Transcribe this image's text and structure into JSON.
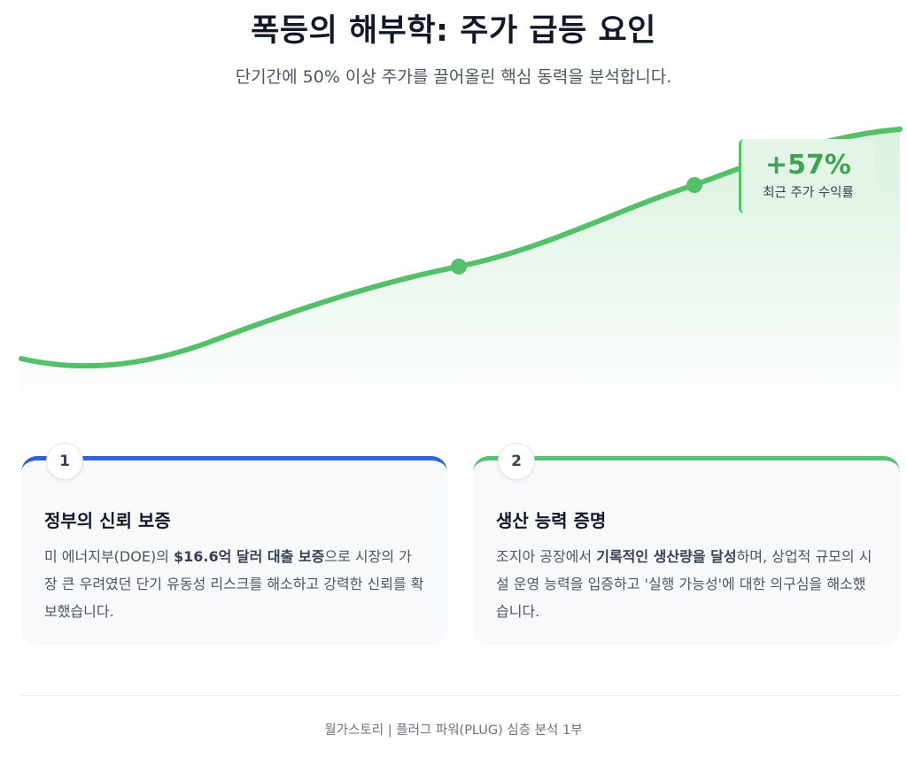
{
  "header": {
    "title": "폭등의 해부학: 주가 급등 요인",
    "subtitle": "단기간에 50% 이상 주가를 끌어올린 핵심 동력을 분석합니다."
  },
  "chart_data": {
    "type": "area",
    "title": "",
    "trend": "rising",
    "marked_points": 2,
    "annotation": {
      "value": "+57%",
      "label": "최근 주가 수익률"
    }
  },
  "colors": {
    "line": "#55c06a",
    "card_1_accent": "#2f63d6",
    "card_2_accent": "#5cc07a",
    "badge_bg": "#e3f5e6",
    "badge_text": "#3fa353"
  },
  "cards": [
    {
      "number": "1",
      "title": "정부의 신뢰 보증",
      "body": [
        {
          "text": "미 에너지부(DOE)의 ",
          "bold": false
        },
        {
          "text": "$16.6억 달러 대출 보증",
          "bold": true
        },
        {
          "text": "으로 시장의 가장 큰 우려였던 단기 유동성 리스크를 해소하고 강력한 신뢰를 확보했습니다.",
          "bold": false
        }
      ]
    },
    {
      "number": "2",
      "title": "생산 능력 증명",
      "body": [
        {
          "text": "조지아 공장에서 ",
          "bold": false
        },
        {
          "text": "기록적인 생산량을 달성",
          "bold": true
        },
        {
          "text": "하며, 상업적 규모의 시설 운영 능력을 입증하고 '실행 가능성'에 대한 의구심을 해소했습니다.",
          "bold": false
        }
      ]
    }
  ],
  "footer": {
    "text": "월가스토리 | 플러그 파워(PLUG) 심층 분석 1부"
  }
}
